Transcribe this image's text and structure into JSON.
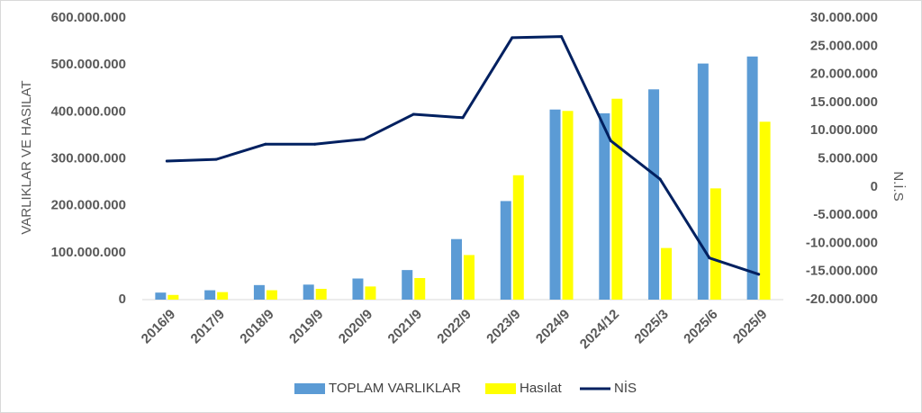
{
  "chart_data": {
    "type": "bar",
    "categories": [
      "2016/9",
      "2017/9",
      "2018/9",
      "2019/9",
      "2020/9",
      "2021/9",
      "2022/9",
      "2023/9",
      "2024/9",
      "2024/12",
      "2025/3",
      "2025/6",
      "2025/9"
    ],
    "series": [
      {
        "name": "TOPLAM VARLIKLAR",
        "type": "bar",
        "axis": "left",
        "color": "#5B9BD5",
        "values": [
          15000000,
          20000000,
          31000000,
          32000000,
          45000000,
          63000000,
          129000000,
          210000000,
          405000000,
          397000000,
          448000000,
          503000000,
          518000000
        ]
      },
      {
        "name": "Hasılat",
        "type": "bar",
        "axis": "left",
        "color": "#FFFF00",
        "values": [
          10000000,
          16000000,
          20000000,
          23000000,
          28000000,
          46000000,
          95000000,
          265000000,
          402000000,
          428000000,
          110000000,
          237000000,
          379000000
        ]
      },
      {
        "name": "NİS",
        "type": "line",
        "axis": "right",
        "color": "#002060",
        "values": [
          4600000,
          4900000,
          7600000,
          7600000,
          8500000,
          12900000,
          12300000,
          26500000,
          26700000,
          8200000,
          1400000,
          -12600000,
          -15500000
        ]
      }
    ],
    "ylabel": "VARLIKLAR VE HASILAT",
    "y2label": "N.İ.S",
    "ylim": [
      0,
      600000000
    ],
    "y2lim": [
      -20000000,
      30000000
    ],
    "yticks": [
      "0",
      "100.000.000",
      "200.000.000",
      "300.000.000",
      "400.000.000",
      "500.000.000",
      "600.000.000"
    ],
    "y2ticks": [
      "-20.000.000",
      "-15.000.000",
      "-10.000.000",
      "-5.000.000",
      "0",
      "5.000.000",
      "10.000.000",
      "15.000.000",
      "20.000.000",
      "25.000.000",
      "30.000.000"
    ],
    "grid": false,
    "legend": "bottom"
  }
}
